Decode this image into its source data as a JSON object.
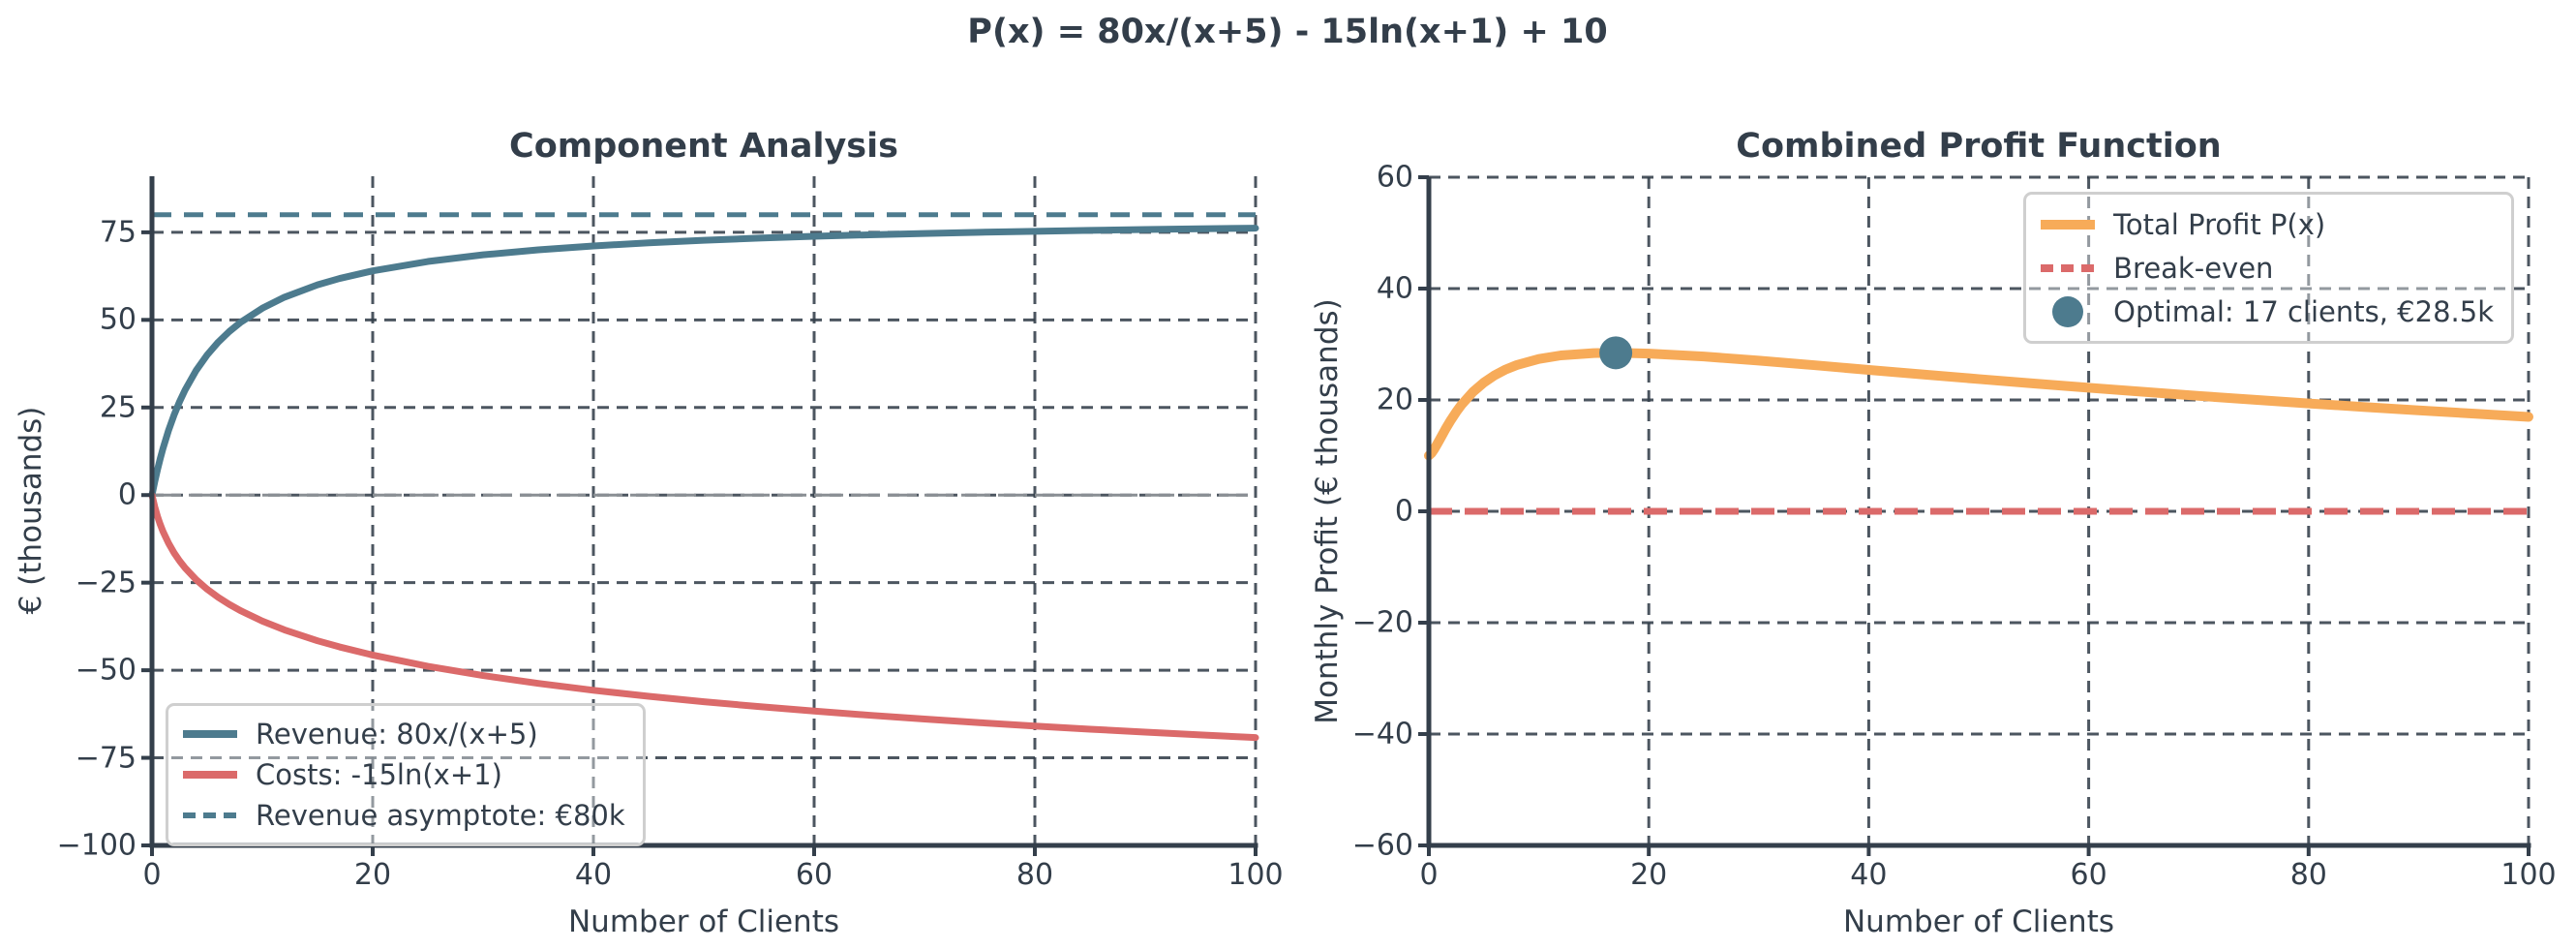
{
  "suptitle": "P(x) = 80x/(x+5) - 15ln(x+1) + 10",
  "background": "#ffffff",
  "colors": {
    "text": "#343f4b",
    "grid": "#343f4b",
    "teal": "#4d7b8e",
    "red": "#db6a6a",
    "orange": "#f7ab59",
    "zero_line": "#8a8f94",
    "legend_border": "#cfcfcf"
  },
  "chart_data": [
    {
      "type": "line",
      "title": "Component Analysis",
      "xlabel": "Number of Clients",
      "ylabel": "€ (thousands)",
      "xlim": [
        0,
        100
      ],
      "ylim": [
        -100,
        91
      ],
      "xticks": [
        0,
        20,
        40,
        60,
        80,
        100
      ],
      "yticks": [
        75,
        50,
        25,
        0,
        -25,
        -50,
        -75,
        -100
      ],
      "grid": "dashed",
      "zero_line": true,
      "legend_position": "lower-left",
      "x": [
        0,
        0.25,
        0.5,
        0.75,
        1,
        1.5,
        2,
        2.5,
        3,
        4,
        5,
        6,
        7,
        8,
        10,
        12,
        15,
        17,
        20,
        25,
        30,
        35,
        40,
        45,
        50,
        55,
        60,
        65,
        70,
        75,
        80,
        85,
        90,
        95,
        100
      ],
      "series": [
        {
          "name_id": "revenue-curve",
          "name": "Revenue: 80x/(x+5)",
          "color_key": "teal",
          "style": "solid",
          "lw": 7,
          "values": [
            0,
            3.81,
            7.27,
            10.43,
            13.33,
            18.46,
            22.86,
            26.67,
            30,
            35.56,
            40,
            43.64,
            46.67,
            49.23,
            53.33,
            56.47,
            60,
            61.82,
            64,
            66.67,
            68.57,
            70,
            71.11,
            72,
            72.73,
            73.33,
            73.85,
            74.29,
            74.67,
            75,
            75.29,
            75.56,
            75.79,
            76,
            76.19
          ]
        },
        {
          "name_id": "costs-curve",
          "name": "Costs: -15ln(x+1)",
          "color_key": "red",
          "style": "solid",
          "lw": 7,
          "values": [
            0,
            -3.35,
            -6.08,
            -8.39,
            -10.4,
            -13.74,
            -16.48,
            -18.79,
            -20.79,
            -24.14,
            -26.88,
            -29.19,
            -31.19,
            -32.96,
            -35.97,
            -38.47,
            -41.59,
            -43.35,
            -45.67,
            -48.87,
            -51.51,
            -53.75,
            -55.72,
            -57.44,
            -58.98,
            -60.38,
            -61.66,
            -62.84,
            -63.94,
            -64.96,
            -65.92,
            -66.82,
            -67.66,
            -68.46,
            -69.23
          ]
        },
        {
          "name_id": "revenue-asymptote-line",
          "name": "Revenue asymptote: €80k",
          "color_key": "teal",
          "style": "dashed",
          "lw": 5,
          "const": 80
        }
      ]
    },
    {
      "type": "line",
      "title": "Combined Profit Function",
      "xlabel": "Number of Clients",
      "ylabel": "Monthly Profit (€ thousands)",
      "xlim": [
        0,
        100
      ],
      "ylim": [
        -60,
        60
      ],
      "xticks": [
        0,
        20,
        40,
        60,
        80,
        100
      ],
      "yticks": [
        60,
        40,
        20,
        0,
        -20,
        -40,
        -60
      ],
      "grid": "dashed",
      "zero_line": false,
      "legend_position": "upper-right",
      "x": [
        0,
        0.25,
        0.5,
        0.75,
        1,
        1.5,
        2,
        2.5,
        3,
        4,
        5,
        6,
        7,
        8,
        10,
        12,
        15,
        17,
        20,
        25,
        30,
        35,
        40,
        45,
        50,
        55,
        60,
        65,
        70,
        75,
        80,
        85,
        90,
        95,
        100
      ],
      "series": [
        {
          "name_id": "total-profit-curve",
          "name": "Total Profit P(x)",
          "color_key": "orange",
          "style": "solid",
          "lw": 10,
          "values": [
            10,
            10.46,
            11.19,
            12.04,
            12.93,
            14.72,
            16.38,
            17.88,
            19.21,
            21.42,
            23.12,
            24.45,
            25.48,
            26.27,
            27.36,
            28,
            28.41,
            28.47,
            28.33,
            27.8,
            27.06,
            26.25,
            25.39,
            24.56,
            23.75,
            22.95,
            22.19,
            21.45,
            20.73,
            20.04,
            19.37,
            18.74,
            18.13,
            17.54,
            16.96
          ]
        },
        {
          "name_id": "break-even-line",
          "name": "Break-even",
          "color_key": "red",
          "style": "dashed",
          "lw": 7,
          "const": 0
        },
        {
          "name_id": "optimal-marker",
          "name": "Optimal: 17 clients, €28.5k",
          "color_key": "teal",
          "style": "marker",
          "point": [
            17,
            28.46
          ]
        }
      ]
    }
  ]
}
